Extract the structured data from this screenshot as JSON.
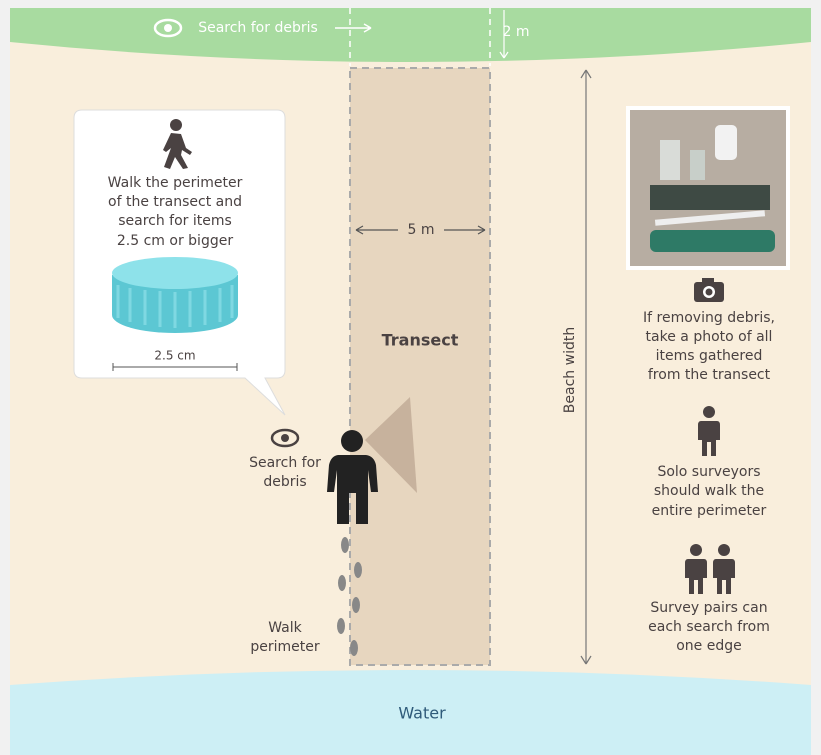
{
  "top_band": {
    "label": "Search for debris",
    "width_label": "2 m"
  },
  "callout": {
    "lines": [
      "Walk the perimeter",
      "of the transect and",
      "search for items",
      "2.5 cm or bigger"
    ],
    "size_label": "2.5 cm"
  },
  "transect": {
    "label": "Transect",
    "width_label": "5 m"
  },
  "beach_width_label": "Beach width",
  "person": {
    "search_lines": [
      "Search for",
      "debris"
    ],
    "walk_lines": [
      "Walk",
      "perimeter"
    ]
  },
  "tips": [
    {
      "lines": [
        "If removing debris,",
        "take a photo of all",
        "items gathered",
        "from the transect"
      ]
    },
    {
      "lines": [
        "Solo surveyors",
        "should walk the",
        "entire perimeter"
      ]
    },
    {
      "lines": [
        "Survey pairs can",
        "each search from",
        "one edge"
      ]
    }
  ],
  "water_label": "Water"
}
